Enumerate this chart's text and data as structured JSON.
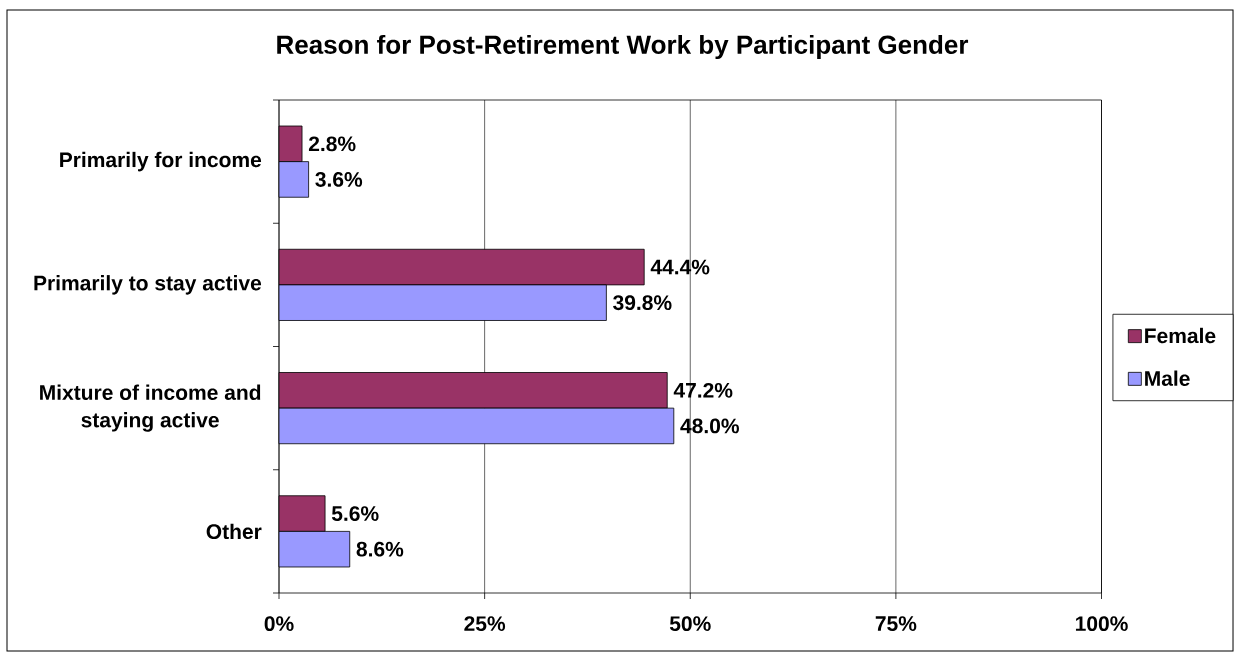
{
  "chart_data": {
    "type": "bar",
    "orientation": "horizontal",
    "title": "Reason for Post-Retirement Work by Participant Gender",
    "categories": [
      "Primarily for income",
      "Primarily to stay active",
      "Mixture of income and staying active",
      "Other"
    ],
    "series": [
      {
        "name": "Female",
        "color": "#993366",
        "values": [
          2.8,
          44.4,
          47.2,
          5.6
        ],
        "value_labels": [
          "2.8%",
          "44.4%",
          "47.2%",
          "5.6%"
        ]
      },
      {
        "name": "Male",
        "color": "#9999ff",
        "values": [
          3.6,
          39.8,
          48.0,
          8.6
        ],
        "value_labels": [
          "3.6%",
          "39.8%",
          "48.0%",
          "8.6%"
        ]
      }
    ],
    "xlim": [
      0,
      100
    ],
    "xticks": [
      {
        "value": 0,
        "label": "0%"
      },
      {
        "value": 25,
        "label": "25%"
      },
      {
        "value": 50,
        "label": "50%"
      },
      {
        "value": 75,
        "label": "75%"
      },
      {
        "value": 100,
        "label": "100%"
      }
    ],
    "grid": "x",
    "legend": "right"
  }
}
